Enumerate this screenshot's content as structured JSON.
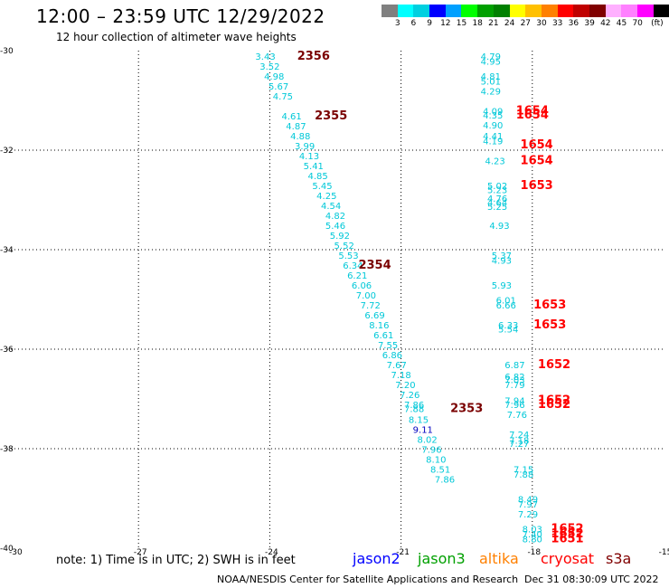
{
  "title": "12:00 – 23:59 UTC 12/29/2022",
  "subtitle": "12 hour collection of altimeter wave heights",
  "colorbar": {
    "colors": [
      "#808080",
      "#00ffff",
      "#00d0e0",
      "#0000ff",
      "#00a0ff",
      "#00ff00",
      "#00a000",
      "#008000",
      "#ffff00",
      "#ffc000",
      "#ff8000",
      "#ff0000",
      "#c00000",
      "#800000",
      "#ffb0ff",
      "#ff80ff",
      "#ff00ff",
      "#000000"
    ],
    "labels": [
      "3",
      "6",
      "9",
      "12",
      "15",
      "18",
      "21",
      "24",
      "27",
      "30",
      "33",
      "36",
      "39",
      "42",
      "45",
      "70",
      "(ft)"
    ]
  },
  "axes": {
    "x_ticks": [
      -30,
      -27,
      -24,
      -21,
      -18,
      -15
    ],
    "y_ticks": [
      -30,
      -32,
      -34,
      -36,
      -38,
      -40
    ],
    "x_labels": [
      "-30",
      "-27",
      "-24",
      "-21",
      "-18",
      "-15"
    ],
    "y_labels": [
      "-30",
      "-32",
      "-34",
      "-36",
      "-38",
      "-40"
    ]
  },
  "chart_data": {
    "type": "scatter",
    "xlim": [
      -30,
      -15
    ],
    "ylim": [
      -40,
      -30
    ],
    "grid": true,
    "colors": {
      "cyan": "#00c8d8",
      "blue": "#0000c0",
      "red": "#ff0000",
      "darkred": "#7a0000"
    },
    "points": [
      {
        "lon": -24.1,
        "lat": -30.18,
        "v": "3.43",
        "c": "cyan"
      },
      {
        "lon": -24.0,
        "lat": -30.38,
        "v": "3.52",
        "c": "cyan"
      },
      {
        "lon": -23.9,
        "lat": -30.58,
        "v": "4.98",
        "c": "cyan"
      },
      {
        "lon": -23.8,
        "lat": -30.78,
        "v": "5.67",
        "c": "cyan"
      },
      {
        "lon": -23.7,
        "lat": -30.98,
        "v": "4.75",
        "c": "cyan"
      },
      {
        "lon": -23.5,
        "lat": -31.38,
        "v": "4.61",
        "c": "cyan"
      },
      {
        "lon": -23.4,
        "lat": -31.58,
        "v": "4.87",
        "c": "cyan"
      },
      {
        "lon": -23.3,
        "lat": -31.78,
        "v": "4.88",
        "c": "cyan"
      },
      {
        "lon": -23.2,
        "lat": -31.98,
        "v": "3.99",
        "c": "cyan"
      },
      {
        "lon": -23.1,
        "lat": -32.18,
        "v": "4.13",
        "c": "cyan"
      },
      {
        "lon": -23.0,
        "lat": -32.38,
        "v": "5.41",
        "c": "cyan"
      },
      {
        "lon": -22.9,
        "lat": -32.58,
        "v": "4.85",
        "c": "cyan"
      },
      {
        "lon": -22.8,
        "lat": -32.78,
        "v": "5.45",
        "c": "cyan"
      },
      {
        "lon": -22.7,
        "lat": -32.98,
        "v": "4.25",
        "c": "cyan"
      },
      {
        "lon": -22.6,
        "lat": -33.18,
        "v": "4.54",
        "c": "cyan"
      },
      {
        "lon": -22.5,
        "lat": -33.38,
        "v": "4.82",
        "c": "cyan"
      },
      {
        "lon": -22.5,
        "lat": -33.58,
        "v": "5.46",
        "c": "cyan"
      },
      {
        "lon": -22.4,
        "lat": -33.78,
        "v": "5.92",
        "c": "cyan"
      },
      {
        "lon": -22.3,
        "lat": -33.98,
        "v": "5.52",
        "c": "cyan"
      },
      {
        "lon": -22.2,
        "lat": -34.18,
        "v": "5.53",
        "c": "cyan"
      },
      {
        "lon": -22.1,
        "lat": -34.38,
        "v": "6.34",
        "c": "cyan"
      },
      {
        "lon": -22.0,
        "lat": -34.58,
        "v": "6.21",
        "c": "cyan"
      },
      {
        "lon": -21.9,
        "lat": -34.78,
        "v": "6.06",
        "c": "cyan"
      },
      {
        "lon": -21.8,
        "lat": -34.98,
        "v": "7.00",
        "c": "cyan"
      },
      {
        "lon": -21.7,
        "lat": -35.18,
        "v": "7.72",
        "c": "cyan"
      },
      {
        "lon": -21.6,
        "lat": -35.38,
        "v": "6.69",
        "c": "cyan"
      },
      {
        "lon": -21.5,
        "lat": -35.58,
        "v": "8.16",
        "c": "cyan"
      },
      {
        "lon": -21.4,
        "lat": -35.78,
        "v": "6.61",
        "c": "cyan"
      },
      {
        "lon": -21.3,
        "lat": -35.98,
        "v": "7.55",
        "c": "cyan"
      },
      {
        "lon": -21.2,
        "lat": -36.18,
        "v": "6.86",
        "c": "cyan"
      },
      {
        "lon": -21.1,
        "lat": -36.38,
        "v": "7.67",
        "c": "cyan"
      },
      {
        "lon": -21.0,
        "lat": -36.58,
        "v": "7.18",
        "c": "cyan"
      },
      {
        "lon": -20.9,
        "lat": -36.78,
        "v": "7.20",
        "c": "cyan"
      },
      {
        "lon": -20.8,
        "lat": -36.98,
        "v": "7.26",
        "c": "cyan"
      },
      {
        "lon": -20.7,
        "lat": -37.18,
        "v": "7.86",
        "c": "cyan"
      },
      {
        "lon": -20.7,
        "lat": -37.26,
        "v": "7.88",
        "c": "cyan"
      },
      {
        "lon": -20.6,
        "lat": -37.48,
        "v": "8.15",
        "c": "cyan"
      },
      {
        "lon": -20.5,
        "lat": -37.68,
        "v": "9.11",
        "c": "blue"
      },
      {
        "lon": -20.4,
        "lat": -37.88,
        "v": "8.02",
        "c": "cyan"
      },
      {
        "lon": -20.3,
        "lat": -38.08,
        "v": "7.96",
        "c": "cyan"
      },
      {
        "lon": -20.2,
        "lat": -38.28,
        "v": "8.10",
        "c": "cyan"
      },
      {
        "lon": -20.1,
        "lat": -38.48,
        "v": "8.51",
        "c": "cyan"
      },
      {
        "lon": -20.0,
        "lat": -38.68,
        "v": "7.86",
        "c": "cyan"
      },
      {
        "lon": -18.95,
        "lat": -30.18,
        "v": "4.79",
        "c": "cyan"
      },
      {
        "lon": -18.95,
        "lat": -30.28,
        "v": "4.95",
        "c": "cyan"
      },
      {
        "lon": -18.95,
        "lat": -30.58,
        "v": "4.81",
        "c": "cyan"
      },
      {
        "lon": -18.95,
        "lat": -30.68,
        "v": "5.01",
        "c": "cyan"
      },
      {
        "lon": -18.95,
        "lat": -30.88,
        "v": "4.29",
        "c": "cyan"
      },
      {
        "lon": -18.9,
        "lat": -31.28,
        "v": "4.09",
        "c": "cyan"
      },
      {
        "lon": -18.9,
        "lat": -31.36,
        "v": "4.35",
        "c": "cyan"
      },
      {
        "lon": -18.9,
        "lat": -31.56,
        "v": "4.90",
        "c": "cyan"
      },
      {
        "lon": -18.9,
        "lat": -31.78,
        "v": "4.41",
        "c": "cyan"
      },
      {
        "lon": -18.9,
        "lat": -31.88,
        "v": "4.19",
        "c": "cyan"
      },
      {
        "lon": -18.85,
        "lat": -32.28,
        "v": "4.23",
        "c": "cyan"
      },
      {
        "lon": -18.8,
        "lat": -32.78,
        "v": "5.02",
        "c": "cyan"
      },
      {
        "lon": -18.8,
        "lat": -32.86,
        "v": "5.23",
        "c": "cyan"
      },
      {
        "lon": -18.8,
        "lat": -33.04,
        "v": "4.76",
        "c": "cyan"
      },
      {
        "lon": -18.8,
        "lat": -33.12,
        "v": "4.64",
        "c": "cyan"
      },
      {
        "lon": -18.8,
        "lat": -33.2,
        "v": "5.25",
        "c": "cyan"
      },
      {
        "lon": -18.75,
        "lat": -33.58,
        "v": "4.93",
        "c": "cyan"
      },
      {
        "lon": -18.7,
        "lat": -34.18,
        "v": "5.37",
        "c": "cyan"
      },
      {
        "lon": -18.7,
        "lat": -34.28,
        "v": "4.93",
        "c": "cyan"
      },
      {
        "lon": -18.7,
        "lat": -34.78,
        "v": "5.93",
        "c": "cyan"
      },
      {
        "lon": -18.6,
        "lat": -35.08,
        "v": "6.01",
        "c": "cyan"
      },
      {
        "lon": -18.6,
        "lat": -35.18,
        "v": "6.66",
        "c": "cyan"
      },
      {
        "lon": -18.55,
        "lat": -35.58,
        "v": "6.33",
        "c": "cyan"
      },
      {
        "lon": -18.55,
        "lat": -35.66,
        "v": "5.54",
        "c": "cyan"
      },
      {
        "lon": -18.4,
        "lat": -36.38,
        "v": "6.87",
        "c": "cyan"
      },
      {
        "lon": -18.4,
        "lat": -36.62,
        "v": "6.82",
        "c": "cyan"
      },
      {
        "lon": -18.4,
        "lat": -36.68,
        "v": "7.03",
        "c": "cyan"
      },
      {
        "lon": -18.4,
        "lat": -36.78,
        "v": "7.79",
        "c": "cyan"
      },
      {
        "lon": -18.4,
        "lat": -37.1,
        "v": "7.94",
        "c": "cyan"
      },
      {
        "lon": -18.4,
        "lat": -37.18,
        "v": "7.96",
        "c": "cyan"
      },
      {
        "lon": -18.35,
        "lat": -37.38,
        "v": "7.76",
        "c": "cyan"
      },
      {
        "lon": -18.3,
        "lat": -37.78,
        "v": "7.24",
        "c": "cyan"
      },
      {
        "lon": -18.3,
        "lat": -37.9,
        "v": "7.18",
        "c": "cyan"
      },
      {
        "lon": -18.3,
        "lat": -37.96,
        "v": "7.27",
        "c": "cyan"
      },
      {
        "lon": -18.2,
        "lat": -38.48,
        "v": "7.15",
        "c": "cyan"
      },
      {
        "lon": -18.2,
        "lat": -38.58,
        "v": "7.88",
        "c": "cyan"
      },
      {
        "lon": -18.1,
        "lat": -39.08,
        "v": "8.49",
        "c": "cyan"
      },
      {
        "lon": -18.1,
        "lat": -39.18,
        "v": "7.97",
        "c": "cyan"
      },
      {
        "lon": -18.1,
        "lat": -39.38,
        "v": "7.29",
        "c": "cyan"
      },
      {
        "lon": -18.0,
        "lat": -39.68,
        "v": "8.03",
        "c": "cyan"
      },
      {
        "lon": -18.0,
        "lat": -39.78,
        "v": "7.40",
        "c": "cyan"
      },
      {
        "lon": -18.0,
        "lat": -39.88,
        "v": "8.80",
        "c": "cyan"
      }
    ],
    "time_labels": [
      {
        "lon": -23.0,
        "lat": -30.18,
        "t": "2356",
        "c": "darkred"
      },
      {
        "lon": -22.6,
        "lat": -31.38,
        "t": "2355",
        "c": "darkred"
      },
      {
        "lon": -21.6,
        "lat": -34.38,
        "t": "2354",
        "c": "darkred"
      },
      {
        "lon": -19.5,
        "lat": -37.26,
        "t": "2353",
        "c": "darkred"
      },
      {
        "lon": -18.0,
        "lat": -31.28,
        "t": "1654",
        "c": "red"
      },
      {
        "lon": -18.0,
        "lat": -31.36,
        "t": "1654",
        "c": "red"
      },
      {
        "lon": -17.9,
        "lat": -31.96,
        "t": "1654",
        "c": "red"
      },
      {
        "lon": -17.9,
        "lat": -32.28,
        "t": "1654",
        "c": "red"
      },
      {
        "lon": -17.9,
        "lat": -32.78,
        "t": "1653",
        "c": "red"
      },
      {
        "lon": -17.6,
        "lat": -35.18,
        "t": "1653",
        "c": "red"
      },
      {
        "lon": -17.6,
        "lat": -35.58,
        "t": "1653",
        "c": "red"
      },
      {
        "lon": -17.5,
        "lat": -36.38,
        "t": "1652",
        "c": "red"
      },
      {
        "lon": -17.5,
        "lat": -37.1,
        "t": "1652",
        "c": "red"
      },
      {
        "lon": -17.5,
        "lat": -37.18,
        "t": "1652",
        "c": "red"
      },
      {
        "lon": -17.2,
        "lat": -39.68,
        "t": "1652",
        "c": "red"
      },
      {
        "lon": -17.2,
        "lat": -39.78,
        "t": "1652",
        "c": "red"
      },
      {
        "lon": -17.2,
        "lat": -39.88,
        "t": "1651",
        "c": "red"
      }
    ]
  },
  "note": "note:  1) Time is in UTC;  2) SWH is in feet",
  "legend": [
    {
      "label": "jason2",
      "color": "#0000ff"
    },
    {
      "label": "jason3",
      "color": "#00a000"
    },
    {
      "label": "altika",
      "color": "#ff8000"
    },
    {
      "label": "cryosat",
      "color": "#ff0000"
    },
    {
      "label": "s3a",
      "color": "#800000"
    }
  ],
  "credit": "NOAA/NESDIS Center for Satellite Applications and Research",
  "credit_date": "Dec 31 08:30:09 UTC 2022"
}
